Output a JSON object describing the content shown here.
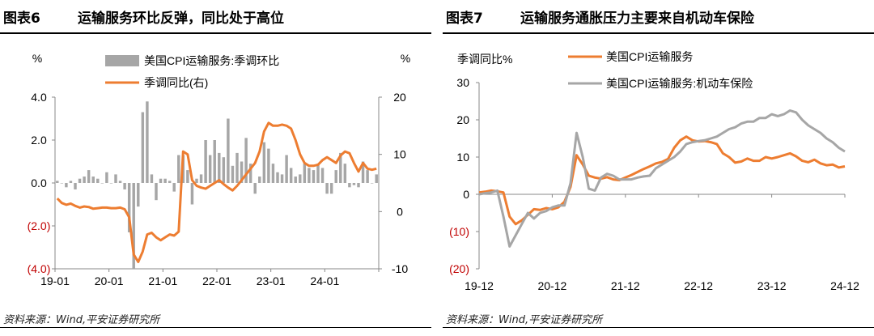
{
  "charts": [
    {
      "fig_no": "图表6",
      "title": "运输服务环比反弹，同比处于高位",
      "source": "资料来源：Wind,平安证券研究所"
    },
    {
      "fig_no": "图表7",
      "title": "运输服务通胀压力主要来自机动车保险",
      "source": "资料来源：Wind,平安证券研究所"
    }
  ],
  "colors": {
    "orange": "#ED7D31",
    "gray": "#A6A6A6",
    "red_label": "#C00000"
  },
  "chart_data": [
    {
      "type": "bar+line",
      "left_axis": {
        "unit": "%",
        "range": [
          -4,
          4
        ],
        "ticks": [
          {
            "v": 4,
            "label": "4.0"
          },
          {
            "v": 2,
            "label": "2.0"
          },
          {
            "v": 0,
            "label": "0.0"
          },
          {
            "v": -2,
            "label": "(2.0)"
          },
          {
            "v": -4,
            "label": "(4.0)"
          }
        ]
      },
      "right_axis": {
        "unit": "%",
        "range": [
          -10,
          20
        ],
        "ticks": [
          {
            "v": 20,
            "label": "20"
          },
          {
            "v": 10,
            "label": "10"
          },
          {
            "v": 0,
            "label": "0"
          },
          {
            "v": -10,
            "label": "-10"
          }
        ]
      },
      "x_ticks": [
        "19-01",
        "20-01",
        "21-01",
        "22-01",
        "23-01",
        "24-01"
      ],
      "legend": [
        "美国CPI运输服务:季调环比",
        "季调同比(右)"
      ],
      "months": 72,
      "bars": [
        0.1,
        0.0,
        -0.2,
        0.1,
        -0.3,
        0.2,
        0.3,
        0.6,
        0.3,
        0.2,
        0.0,
        0.5,
        0.0,
        0.4,
        0.1,
        -0.3,
        -2.3,
        -4.0,
        -1.1,
        3.3,
        3.8,
        0.4,
        -0.8,
        0.2,
        0.2,
        0.1,
        -0.4,
        1.3,
        1.3,
        0.6,
        -1.0,
        0.2,
        0.4,
        2.0,
        1.3,
        2.0,
        1.4,
        1.2,
        3.0,
        0.8,
        1.4,
        1.0,
        2.1,
        0.9,
        -0.5,
        0.3,
        1.9,
        1.6,
        0.9,
        0.5,
        0.4,
        1.3,
        0.7,
        0.3,
        0.4,
        0.9,
        0.7,
        0.6,
        0.9,
        0.7,
        -0.5,
        -0.5,
        0.6,
        1.4,
        0.9,
        -0.2,
        -0.1,
        -0.2,
        1.0,
        0.6,
        0.0,
        0.4
      ],
      "line": [
        2.3,
        1.5,
        1.2,
        1.4,
        1.0,
        0.7,
        0.9,
        0.8,
        0.5,
        0.6,
        0.7,
        0.7,
        0.6,
        0.6,
        0.7,
        0.4,
        -1.0,
        -7.5,
        -8.8,
        -7.0,
        -4.0,
        -3.7,
        -4.5,
        -5.0,
        -4.5,
        -4.0,
        -4.2,
        -3.5,
        10.5,
        10.0,
        5.5,
        4.5,
        4.2,
        4.0,
        4.5,
        5.0,
        5.5,
        4.8,
        4.2,
        3.7,
        4.5,
        5.5,
        6.5,
        7.5,
        8.5,
        10.5,
        14.0,
        15.5,
        15.0,
        15.0,
        15.2,
        15.0,
        14.5,
        12.5,
        10.0,
        8.5,
        8.0,
        8.0,
        8.2,
        9.0,
        9.5,
        9.0,
        8.5,
        9.8,
        10.5,
        10.2,
        8.5,
        7.0,
        8.5,
        7.5,
        7.3,
        7.5
      ]
    },
    {
      "type": "line",
      "y_axis": {
        "unit": "季调同比%",
        "range": [
          -20,
          30
        ],
        "ticks": [
          {
            "v": 30,
            "label": "30"
          },
          {
            "v": 20,
            "label": "20"
          },
          {
            "v": 10,
            "label": "10"
          },
          {
            "v": 0,
            "label": "0"
          },
          {
            "v": -10,
            "label": "(10)"
          },
          {
            "v": -20,
            "label": "(20)"
          }
        ]
      },
      "x_ticks": [
        "19-12",
        "20-12",
        "21-12",
        "22-12",
        "23-12",
        "24-12"
      ],
      "months": 61,
      "series": [
        {
          "name": "美国CPI运输服务",
          "values": [
            0.5,
            0.7,
            1.0,
            0.8,
            0.5,
            -6.0,
            -8.0,
            -7.0,
            -5.5,
            -4.0,
            -4.2,
            -3.7,
            -4.0,
            -3.5,
            -2.0,
            2.0,
            10.5,
            8.0,
            5.0,
            4.5,
            4.2,
            4.6,
            4.0,
            3.8,
            4.5,
            5.2,
            6.0,
            6.8,
            7.5,
            8.3,
            8.7,
            9.5,
            12.5,
            14.5,
            15.5,
            14.5,
            14.2,
            14.3,
            14.0,
            13.5,
            11.0,
            10.0,
            8.5,
            8.8,
            9.6,
            9.0,
            9.0,
            10.0,
            9.6,
            10.0,
            10.5,
            11.0,
            10.2,
            9.0,
            8.6,
            9.3,
            8.3,
            7.8,
            8.0,
            7.2,
            7.5
          ]
        },
        {
          "name": "美国CPI运输服务:机动车保险",
          "values": [
            0.0,
            0.3,
            0.5,
            1.0,
            -6.0,
            -14.0,
            -11.0,
            -8.0,
            -5.0,
            -6.5,
            -5.0,
            -4.5,
            -3.5,
            -3.0,
            -3.0,
            3.0,
            16.5,
            10.0,
            1.5,
            1.0,
            4.5,
            5.5,
            5.0,
            4.0,
            4.0,
            4.0,
            4.5,
            4.8,
            5.0,
            7.0,
            8.0,
            9.0,
            10.0,
            11.5,
            13.5,
            14.0,
            14.3,
            14.5,
            15.0,
            15.5,
            16.5,
            17.5,
            18.0,
            19.0,
            19.5,
            19.5,
            20.5,
            20.5,
            21.5,
            21.0,
            21.5,
            22.5,
            22.0,
            20.0,
            18.5,
            17.5,
            16.5,
            15.0,
            14.0,
            12.5,
            11.5
          ]
        }
      ]
    }
  ]
}
